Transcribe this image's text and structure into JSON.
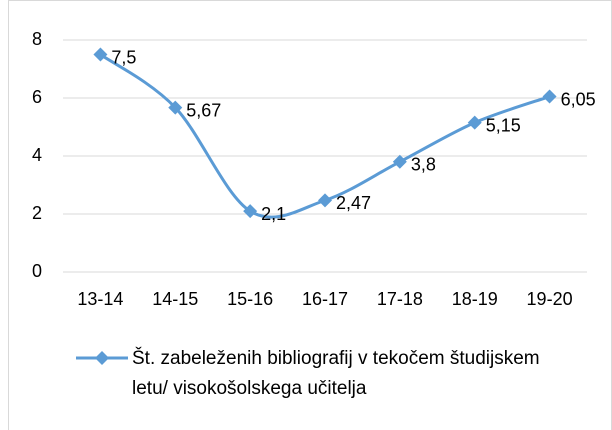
{
  "chart_data": {
    "type": "line",
    "categories": [
      "13-14",
      "14-15",
      "15-16",
      "16-17",
      "17-18",
      "18-19",
      "19-20"
    ],
    "series": [
      {
        "name": "Št. zabeleženih bibliografij v tekočem študijskem letu/ visokošolskega učitelja",
        "color": "#5b9bd5",
        "values": [
          7.5,
          5.67,
          2.1,
          2.47,
          3.8,
          5.15,
          6.05
        ],
        "value_labels": [
          "7,5",
          "5,67",
          "2,1",
          "2,47",
          "3,8",
          "5,15",
          "6,05"
        ]
      }
    ],
    "ylim": [
      0,
      8
    ],
    "yticks": [
      0,
      2,
      4,
      6,
      8
    ],
    "grid": true,
    "legend": "bottom"
  }
}
